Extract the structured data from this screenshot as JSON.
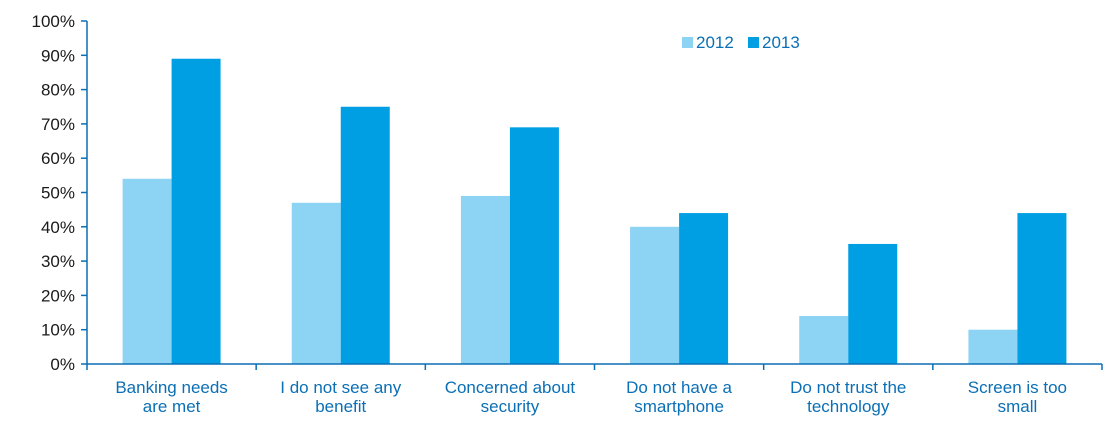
{
  "chart_data": {
    "type": "bar",
    "categories": [
      [
        "Banking needs",
        "are met"
      ],
      [
        "I do not see any",
        "benefit"
      ],
      [
        "Concerned about",
        "security"
      ],
      [
        "Do not have a",
        "smartphone"
      ],
      [
        "Do not trust the",
        "technology"
      ],
      [
        "Screen is too",
        "small"
      ]
    ],
    "series": [
      {
        "name": "2012",
        "values": [
          54,
          47,
          49,
          40,
          14,
          10
        ],
        "color": "#8dd3f3"
      },
      {
        "name": "2013",
        "values": [
          89,
          75,
          69,
          44,
          35,
          44
        ],
        "color": "#009fe3"
      }
    ],
    "ylim": [
      0,
      100
    ],
    "y_ticks": [
      "0%",
      "10%",
      "20%",
      "30%",
      "40%",
      "50%",
      "60%",
      "70%",
      "80%",
      "90%",
      "100%"
    ],
    "grid": false,
    "legend_position": "top-right",
    "title": "",
    "xlabel": "",
    "ylabel": ""
  }
}
